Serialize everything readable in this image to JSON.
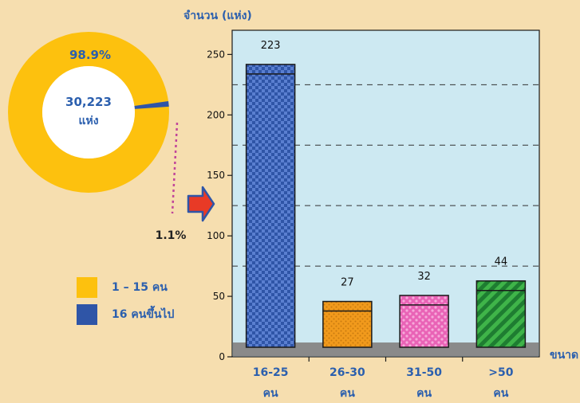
{
  "colors": {
    "background": "#f6deaf",
    "donut_large": "#fdc10e",
    "donut_small": "#2f55a7",
    "label_text": "#2b5fae",
    "plot_bg": "#cde9f2",
    "base_band": "#8a8a8a",
    "callout_line": "#c0449a",
    "arrow_fill": "#e83a26",
    "arrow_outline": "#2f55a7"
  },
  "donut": {
    "center_value": "30,223",
    "center_unit": "แห่ง",
    "slices": [
      {
        "label": "98.9%",
        "value": 98.9,
        "color": "#fdc10e"
      },
      {
        "label": "1.1%",
        "value": 1.1,
        "color": "#2f55a7"
      }
    ]
  },
  "legend": [
    {
      "label": "1 – 15 คน",
      "color": "#fdc10e"
    },
    {
      "label": "16 คนขึ้นไป",
      "color": "#2f55a7"
    }
  ],
  "chart_data": {
    "type": "bar",
    "ylabel": "จำนวน (แห่ง)",
    "xlabel": "ขนาด",
    "ylim": [
      0,
      270
    ],
    "yticks": [
      0,
      50,
      100,
      150,
      200,
      250
    ],
    "base_band_value": 25,
    "categories": [
      {
        "line1": "16-25",
        "line2": "คน"
      },
      {
        "line1": "26-30",
        "line2": "คน"
      },
      {
        "line1": "31-50",
        "line2": "คน"
      },
      {
        "line1": ">50",
        "line2": "คน"
      }
    ],
    "values": [
      223,
      27,
      32,
      44
    ],
    "labels": [
      "223",
      "27",
      "32",
      "44"
    ],
    "bar_colors": [
      "#2f55a7",
      "#f19a1c",
      "#e963b6",
      "#3fb449"
    ],
    "pattern_colors": [
      "#5a7fd0",
      "#c97b10",
      "#f6a9da",
      "#1e7d31"
    ],
    "grid_dashed": [
      75,
      125,
      175,
      225
    ]
  }
}
